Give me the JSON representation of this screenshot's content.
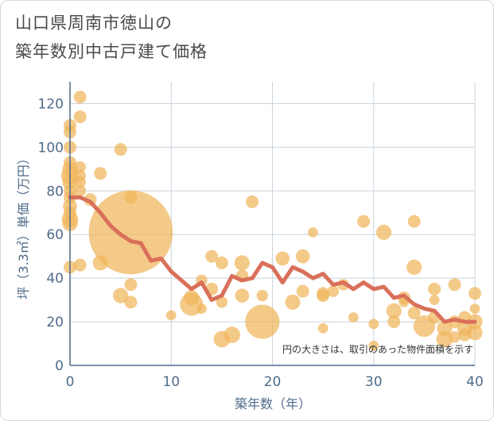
{
  "header": {
    "title_line1": "山口県周南市徳山の",
    "title_line2": "築年数別中古戸建て価格"
  },
  "chart_data": {
    "type": "scatter",
    "xlabel": "築年数（年）",
    "ylabel": "坪（3.3㎡）単価（万円）",
    "xlim": [
      0,
      40
    ],
    "ylim": [
      0,
      130
    ],
    "xticks": [
      0,
      10,
      20,
      30,
      40
    ],
    "yticks": [
      0,
      20,
      40,
      60,
      80,
      100,
      120
    ],
    "grid": true,
    "annotation": "円の大きさは、取引のあった物件面積を示す",
    "colors": {
      "bubble": "#f0b55c",
      "line": "#d9705a",
      "grid": "#c9d3dd",
      "axis": "#4f6b8a"
    },
    "bubbles": [
      {
        "x": 0,
        "y": 110,
        "s": 1
      },
      {
        "x": 0,
        "y": 107,
        "s": 1
      },
      {
        "x": 0,
        "y": 100,
        "s": 1
      },
      {
        "x": 0,
        "y": 93,
        "s": 1
      },
      {
        "x": 0,
        "y": 90,
        "s": 1.2
      },
      {
        "x": 0,
        "y": 87,
        "s": 1.4
      },
      {
        "x": 0,
        "y": 84,
        "s": 1.2
      },
      {
        "x": 0,
        "y": 80,
        "s": 1
      },
      {
        "x": 0,
        "y": 77,
        "s": 1
      },
      {
        "x": 0,
        "y": 73,
        "s": 1.1
      },
      {
        "x": 0,
        "y": 70,
        "s": 1
      },
      {
        "x": 0,
        "y": 67,
        "s": 1.3
      },
      {
        "x": 0,
        "y": 65,
        "s": 1.2
      },
      {
        "x": 0,
        "y": 45,
        "s": 1
      },
      {
        "x": 1,
        "y": 123,
        "s": 1
      },
      {
        "x": 1,
        "y": 114,
        "s": 1
      },
      {
        "x": 1,
        "y": 91,
        "s": 0.9
      },
      {
        "x": 1,
        "y": 87,
        "s": 0.9
      },
      {
        "x": 1,
        "y": 84,
        "s": 0.9
      },
      {
        "x": 1,
        "y": 80,
        "s": 0.9
      },
      {
        "x": 1,
        "y": 46,
        "s": 1
      },
      {
        "x": 2,
        "y": 76,
        "s": 1
      },
      {
        "x": 3,
        "y": 88,
        "s": 1
      },
      {
        "x": 3,
        "y": 47,
        "s": 1.2
      },
      {
        "x": 5,
        "y": 99,
        "s": 1
      },
      {
        "x": 5,
        "y": 32,
        "s": 1.2
      },
      {
        "x": 6,
        "y": 61,
        "s": 6.6
      },
      {
        "x": 6,
        "y": 77,
        "s": 1
      },
      {
        "x": 6,
        "y": 37,
        "s": 1
      },
      {
        "x": 6,
        "y": 29,
        "s": 1
      },
      {
        "x": 10,
        "y": 23,
        "s": 0.8
      },
      {
        "x": 12,
        "y": 31,
        "s": 1.2
      },
      {
        "x": 12,
        "y": 28,
        "s": 1.8
      },
      {
        "x": 13,
        "y": 39,
        "s": 0.9
      },
      {
        "x": 13,
        "y": 26,
        "s": 0.8
      },
      {
        "x": 14,
        "y": 50,
        "s": 1
      },
      {
        "x": 14,
        "y": 35,
        "s": 1
      },
      {
        "x": 15,
        "y": 47,
        "s": 1
      },
      {
        "x": 15,
        "y": 29,
        "s": 0.9
      },
      {
        "x": 15,
        "y": 12,
        "s": 1.3
      },
      {
        "x": 16,
        "y": 14,
        "s": 1.3
      },
      {
        "x": 17,
        "y": 47,
        "s": 1.2
      },
      {
        "x": 17,
        "y": 41,
        "s": 1
      },
      {
        "x": 17,
        "y": 32,
        "s": 1.1
      },
      {
        "x": 18,
        "y": 75,
        "s": 1
      },
      {
        "x": 19,
        "y": 20,
        "s": 2.7
      },
      {
        "x": 19,
        "y": 32,
        "s": 0.9
      },
      {
        "x": 21,
        "y": 49,
        "s": 1.1
      },
      {
        "x": 22,
        "y": 29,
        "s": 1.2
      },
      {
        "x": 23,
        "y": 50,
        "s": 1.1
      },
      {
        "x": 23,
        "y": 34,
        "s": 1
      },
      {
        "x": 24,
        "y": 61,
        "s": 0.8
      },
      {
        "x": 25,
        "y": 33,
        "s": 1
      },
      {
        "x": 25,
        "y": 32,
        "s": 1
      },
      {
        "x": 25,
        "y": 17,
        "s": 0.8
      },
      {
        "x": 26,
        "y": 34,
        "s": 0.9
      },
      {
        "x": 27,
        "y": 37,
        "s": 0.9
      },
      {
        "x": 28,
        "y": 22,
        "s": 0.8
      },
      {
        "x": 29,
        "y": 66,
        "s": 1
      },
      {
        "x": 30,
        "y": 19,
        "s": 0.8
      },
      {
        "x": 30,
        "y": 9,
        "s": 0.8
      },
      {
        "x": 31,
        "y": 61,
        "s": 1.2
      },
      {
        "x": 32,
        "y": 25,
        "s": 1.2
      },
      {
        "x": 32,
        "y": 20,
        "s": 1
      },
      {
        "x": 33,
        "y": 31,
        "s": 1
      },
      {
        "x": 33,
        "y": 29,
        "s": 0.8
      },
      {
        "x": 34,
        "y": 66,
        "s": 1
      },
      {
        "x": 34,
        "y": 45,
        "s": 1.2
      },
      {
        "x": 34,
        "y": 24,
        "s": 1
      },
      {
        "x": 35,
        "y": 18,
        "s": 1.7
      },
      {
        "x": 36,
        "y": 35,
        "s": 1
      },
      {
        "x": 36,
        "y": 30,
        "s": 0.8
      },
      {
        "x": 36,
        "y": 22,
        "s": 1
      },
      {
        "x": 37,
        "y": 17,
        "s": 1.2
      },
      {
        "x": 37,
        "y": 12,
        "s": 1.3
      },
      {
        "x": 38,
        "y": 37,
        "s": 1
      },
      {
        "x": 38,
        "y": 20,
        "s": 1
      },
      {
        "x": 38,
        "y": 13,
        "s": 0.9
      },
      {
        "x": 39,
        "y": 22,
        "s": 1
      },
      {
        "x": 39,
        "y": 17,
        "s": 1.2
      },
      {
        "x": 39,
        "y": 14,
        "s": 1
      },
      {
        "x": 40,
        "y": 33,
        "s": 1
      },
      {
        "x": 40,
        "y": 26,
        "s": 0.8
      },
      {
        "x": 40,
        "y": 20,
        "s": 1.2
      },
      {
        "x": 40,
        "y": 15,
        "s": 1.2
      }
    ],
    "average_line": {
      "x": [
        0,
        1,
        2,
        3,
        4,
        5,
        6,
        7,
        8,
        9,
        10,
        11,
        12,
        13,
        14,
        15,
        16,
        17,
        18,
        19,
        20,
        21,
        22,
        23,
        24,
        25,
        26,
        27,
        28,
        29,
        30,
        31,
        32,
        33,
        34,
        35,
        36,
        37,
        38,
        39,
        40
      ],
      "y": [
        77,
        77,
        75,
        70,
        64,
        60,
        57,
        56,
        48,
        49,
        43,
        39,
        35,
        38,
        30,
        32,
        41,
        39,
        40,
        47,
        45,
        38,
        45,
        43,
        40,
        42,
        37,
        38,
        35,
        38,
        35,
        36,
        31,
        32,
        28,
        26,
        25,
        20,
        21,
        20,
        20
      ]
    }
  }
}
